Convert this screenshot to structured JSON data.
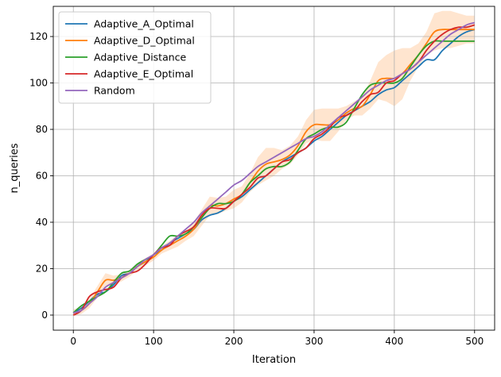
{
  "chart_data": {
    "type": "line",
    "title": "",
    "xlabel": "Iteration",
    "ylabel": "n_queries",
    "xlim": [
      -25,
      525
    ],
    "ylim": [
      -6.5,
      133
    ],
    "xticks": [
      0,
      100,
      200,
      300,
      400,
      500
    ],
    "yticks": [
      0,
      20,
      40,
      60,
      80,
      100,
      120
    ],
    "grid": true,
    "legend_position": "upper-left",
    "series": [
      {
        "name": "Adaptive_A_Optimal",
        "color": "#1f77b4",
        "x": [
          0,
          10,
          20,
          30,
          40,
          50,
          60,
          70,
          80,
          90,
          100,
          110,
          120,
          130,
          140,
          150,
          160,
          170,
          180,
          190,
          200,
          210,
          220,
          230,
          240,
          250,
          260,
          270,
          280,
          290,
          300,
          310,
          320,
          330,
          340,
          350,
          360,
          370,
          380,
          390,
          400,
          410,
          420,
          430,
          440,
          450,
          460,
          470,
          480,
          490,
          500
        ],
        "y": [
          1,
          3,
          6,
          9,
          10,
          13,
          17,
          18,
          21,
          23,
          26,
          28,
          31,
          33,
          35,
          37,
          41,
          43,
          44,
          46,
          49,
          51,
          54,
          57,
          60,
          63,
          66,
          68,
          70,
          72,
          75,
          77,
          80,
          83,
          86,
          88,
          90,
          92,
          95,
          97,
          98,
          101,
          104,
          107,
          110,
          110,
          114,
          117,
          120,
          122,
          123
        ]
      },
      {
        "name": "Adaptive_D_Optimal",
        "color": "#ff7f0e",
        "band": [
          1.5,
          1.5,
          2,
          2.5,
          3,
          2,
          1.5,
          1.5,
          1.5,
          1.5,
          1.5,
          1.5,
          2,
          2.5,
          2,
          3,
          3.5,
          4,
          3.5,
          3,
          4,
          3.5,
          4,
          6,
          7,
          6,
          4,
          4,
          4,
          5,
          6.5,
          7,
          7,
          5,
          3,
          3,
          4,
          6,
          8,
          10,
          12,
          11,
          7,
          5,
          5,
          8,
          8,
          8,
          7,
          6,
          6
        ],
        "x": [
          0,
          10,
          20,
          30,
          40,
          50,
          60,
          70,
          80,
          90,
          100,
          110,
          120,
          130,
          140,
          150,
          160,
          170,
          180,
          190,
          200,
          210,
          220,
          230,
          240,
          250,
          260,
          270,
          280,
          290,
          300,
          310,
          320,
          330,
          340,
          350,
          360,
          370,
          380,
          390,
          400,
          410,
          420,
          430,
          440,
          450,
          460,
          470,
          480,
          490,
          500
        ],
        "y": [
          1,
          2,
          5,
          10,
          15,
          15,
          16,
          18,
          21,
          23,
          25,
          28,
          30,
          32,
          34,
          37,
          42,
          47,
          47,
          48,
          50,
          52,
          57,
          62,
          65,
          66,
          67,
          69,
          73,
          79,
          82,
          82,
          82,
          84,
          87,
          89,
          90,
          95,
          101,
          102,
          102,
          104,
          108,
          112,
          117,
          122,
          123,
          123,
          123,
          123,
          123
        ]
      },
      {
        "name": "Adaptive_Distance",
        "color": "#2ca02c",
        "x": [
          0,
          10,
          20,
          30,
          40,
          50,
          60,
          70,
          80,
          90,
          100,
          110,
          120,
          130,
          140,
          150,
          160,
          170,
          180,
          190,
          200,
          210,
          220,
          230,
          240,
          250,
          260,
          270,
          280,
          290,
          300,
          310,
          320,
          330,
          340,
          350,
          360,
          370,
          380,
          390,
          400,
          410,
          420,
          430,
          440,
          450,
          460,
          470,
          480,
          490,
          500
        ],
        "y": [
          1,
          4,
          6,
          8,
          10,
          14,
          18,
          19,
          22,
          24,
          26,
          30,
          34,
          34,
          35,
          38,
          42,
          46,
          48,
          48,
          49,
          52,
          57,
          60,
          63,
          64,
          64,
          66,
          71,
          76,
          78,
          80,
          81,
          81,
          83,
          89,
          95,
          99,
          100,
          100,
          100,
          102,
          107,
          112,
          116,
          118,
          118,
          118,
          118,
          118,
          118
        ]
      },
      {
        "name": "Adaptive_E_Optimal",
        "color": "#d62728",
        "x": [
          0,
          10,
          20,
          30,
          40,
          50,
          60,
          70,
          80,
          90,
          100,
          110,
          120,
          130,
          140,
          150,
          160,
          170,
          180,
          190,
          200,
          210,
          220,
          230,
          240,
          250,
          260,
          270,
          280,
          290,
          300,
          310,
          320,
          330,
          340,
          350,
          360,
          370,
          380,
          390,
          400,
          410,
          420,
          430,
          440,
          450,
          460,
          470,
          480,
          490,
          500
        ],
        "y": [
          0,
          2,
          8,
          10,
          11,
          12,
          16,
          18,
          19,
          22,
          26,
          29,
          30,
          34,
          36,
          38,
          43,
          46,
          46,
          46,
          49,
          52,
          55,
          59,
          60,
          63,
          66,
          67,
          70,
          72,
          76,
          78,
          81,
          85,
          86,
          88,
          92,
          95,
          96,
          100,
          101,
          104,
          106,
          109,
          114,
          118,
          121,
          123,
          124,
          124,
          125
        ]
      },
      {
        "name": "Random",
        "color": "#9467bd",
        "x": [
          0,
          10,
          20,
          30,
          40,
          50,
          60,
          70,
          80,
          90,
          100,
          110,
          120,
          130,
          140,
          150,
          160,
          170,
          180,
          190,
          200,
          210,
          220,
          230,
          240,
          250,
          260,
          270,
          280,
          290,
          300,
          310,
          320,
          330,
          340,
          350,
          360,
          370,
          380,
          390,
          400,
          410,
          420,
          430,
          440,
          450,
          460,
          470,
          480,
          490,
          500
        ],
        "y": [
          1,
          2,
          5,
          8,
          12,
          14,
          16,
          18,
          21,
          24,
          26,
          29,
          31,
          34,
          37,
          40,
          44,
          47,
          50,
          53,
          56,
          58,
          61,
          64,
          66,
          68,
          70,
          72,
          74,
          76,
          77,
          79,
          82,
          85,
          88,
          91,
          94,
          97,
          99,
          101,
          102,
          104,
          106,
          109,
          112,
          115,
          118,
          121,
          123,
          125,
          126
        ]
      }
    ]
  }
}
